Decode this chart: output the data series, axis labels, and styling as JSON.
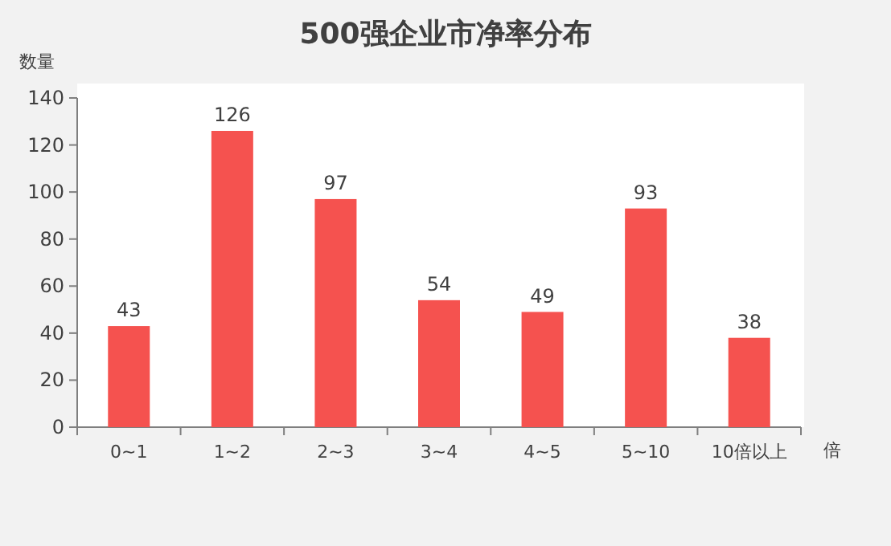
{
  "chart_data": {
    "type": "bar",
    "title": "500强企业市净率分布",
    "ylabel": "数量",
    "xlabel": "倍",
    "categories": [
      "0~1",
      "1~2",
      "2~3",
      "3~4",
      "4~5",
      "5~10",
      "10倍以上"
    ],
    "values": [
      43,
      126,
      97,
      54,
      49,
      93,
      38
    ],
    "color": "#f5524f",
    "ylim": [
      0,
      140
    ],
    "yticks": [
      0,
      20,
      40,
      60,
      80,
      100,
      120,
      140
    ],
    "data_labels": true
  }
}
